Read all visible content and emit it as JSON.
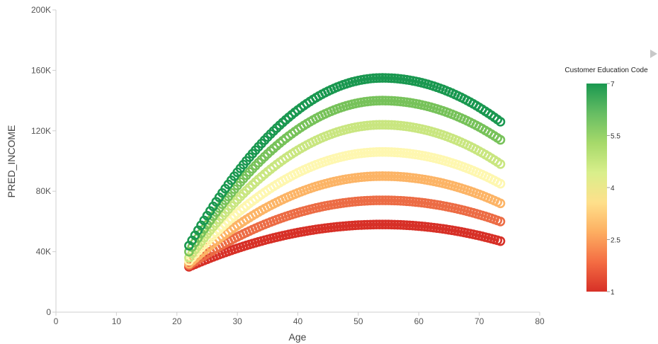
{
  "chart_data": {
    "type": "scatter",
    "xlabel": "Age",
    "ylabel": "PRED_INCOME",
    "xlim": [
      0,
      80
    ],
    "ylim": [
      0,
      200000
    ],
    "x_ticks": [
      0,
      10,
      20,
      30,
      40,
      50,
      60,
      70,
      80
    ],
    "x_tick_labels": [
      "0",
      "10",
      "20",
      "30",
      "40",
      "50",
      "60",
      "70",
      "80"
    ],
    "y_ticks": [
      0,
      40000,
      80000,
      120000,
      160000,
      200000
    ],
    "y_tick_labels": [
      "0",
      "40K",
      "80K",
      "120K",
      "160K",
      "200K"
    ],
    "grid": false,
    "marker": "open-circle",
    "legend": {
      "title": "Customer Education Code",
      "position": "right",
      "min": 1,
      "max": 7,
      "tick_labels": [
        "7",
        "5.5",
        "4",
        "2.5",
        "1"
      ],
      "tick_values": [
        7,
        5.5,
        4,
        2.5,
        1
      ],
      "color_scale": [
        "#d73027",
        "#f46d43",
        "#fdae61",
        "#fee08b",
        "#d9ef8b",
        "#a6d96a",
        "#66bd63",
        "#1a9850"
      ],
      "collapse_arrow_icon": "triangle-right-icon"
    },
    "x_points": [
      22,
      73.5,
      0.5
    ],
    "series": [
      {
        "education_code": 1,
        "color": "#d73027",
        "x_range": [
          22,
          73.5
        ],
        "peak_age": 54,
        "y_start": 30000,
        "y_peak": 58000,
        "y_end": 47000
      },
      {
        "education_code": 2,
        "color": "#ec6c45",
        "x_range": [
          22,
          73.5
        ],
        "peak_age": 54,
        "y_start": 31000,
        "y_peak": 74000,
        "y_end": 60000
      },
      {
        "education_code": 3,
        "color": "#fcb466",
        "x_range": [
          22,
          73.5
        ],
        "peak_age": 54,
        "y_start": 32000,
        "y_peak": 90000,
        "y_end": 72000
      },
      {
        "education_code": 4,
        "color": "#fef7b0",
        "x_range": [
          22,
          73.5
        ],
        "peak_age": 54,
        "y_start": 34000,
        "y_peak": 106000,
        "y_end": 85000
      },
      {
        "education_code": 5,
        "color": "#c9e680",
        "x_range": [
          22,
          73.5
        ],
        "peak_age": 54,
        "y_start": 36000,
        "y_peak": 124000,
        "y_end": 98000
      },
      {
        "education_code": 6,
        "color": "#77c25a",
        "x_range": [
          22,
          73.5
        ],
        "peak_age": 54,
        "y_start": 40000,
        "y_peak": 140000,
        "y_end": 114000
      },
      {
        "education_code": 7,
        "color": "#1a9850",
        "x_range": [
          22,
          73.5
        ],
        "peak_age": 54,
        "y_start": 44000,
        "y_peak": 155000,
        "y_end": 126000
      }
    ]
  }
}
